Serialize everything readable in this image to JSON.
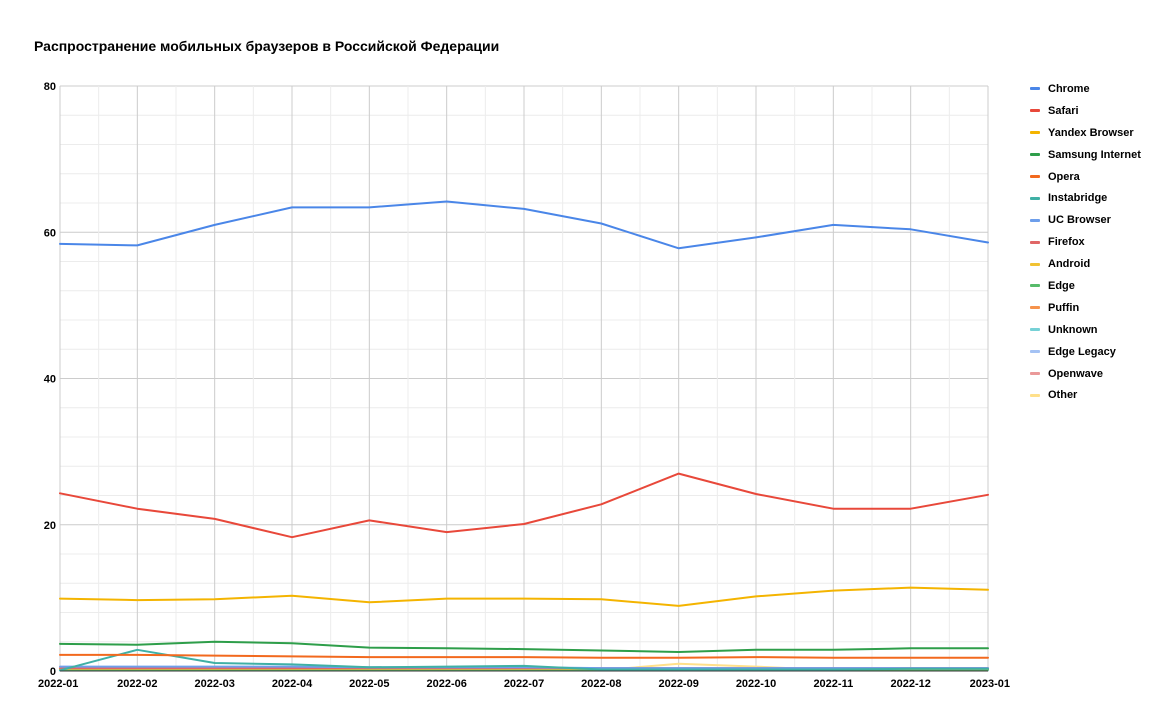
{
  "chart_data": {
    "type": "line",
    "title": "Распространение мобильных браузеров в Российской Федерации",
    "xlabel": "",
    "ylabel": "",
    "ylim": [
      0,
      80
    ],
    "yticks": [
      "0",
      "20",
      "40",
      "60",
      "80"
    ],
    "categories": [
      "2022-01",
      "2022-02",
      "2022-03",
      "2022-04",
      "2022-05",
      "2022-06",
      "2022-07",
      "2022-08",
      "2022-09",
      "2022-10",
      "2022-11",
      "2022-12",
      "2023-01"
    ],
    "grid": true,
    "legend_position": "right",
    "series": [
      {
        "name": "Chrome",
        "color": "#4a86e8",
        "values": [
          58.4,
          58.2,
          61.0,
          63.4,
          63.4,
          64.2,
          63.2,
          61.2,
          57.8,
          59.3,
          61.0,
          60.4,
          58.6
        ]
      },
      {
        "name": "Safari",
        "color": "#e8483a",
        "values": [
          24.3,
          22.2,
          20.8,
          18.3,
          20.6,
          19.0,
          20.1,
          22.8,
          27.0,
          24.2,
          22.2,
          22.2,
          24.1
        ]
      },
      {
        "name": "Yandex Browser",
        "color": "#f4b400",
        "values": [
          9.9,
          9.7,
          9.8,
          10.3,
          9.4,
          9.9,
          9.9,
          9.8,
          8.9,
          10.2,
          11.0,
          11.4,
          11.1
        ]
      },
      {
        "name": "Samsung Internet",
        "color": "#2e9e4a",
        "values": [
          3.7,
          3.6,
          4.0,
          3.8,
          3.2,
          3.1,
          3.0,
          2.8,
          2.6,
          2.9,
          2.9,
          3.1,
          3.1
        ]
      },
      {
        "name": "Opera",
        "color": "#f2691e",
        "values": [
          2.2,
          2.2,
          2.1,
          2.0,
          1.9,
          1.9,
          1.9,
          1.8,
          1.8,
          1.9,
          1.8,
          1.8,
          1.8
        ]
      },
      {
        "name": "Instabridge",
        "color": "#3fb0a5",
        "values": [
          0.1,
          2.9,
          1.1,
          0.9,
          0.5,
          0.6,
          0.7,
          0.2,
          0.2,
          0.2,
          0.2,
          0.3,
          0.3
        ]
      },
      {
        "name": "UC Browser",
        "color": "#6d9eeb",
        "values": [
          0.6,
          0.6,
          0.6,
          0.6,
          0.5,
          0.5,
          0.5,
          0.4,
          0.4,
          0.4,
          0.4,
          0.4,
          0.4
        ]
      },
      {
        "name": "Firefox",
        "color": "#e06666",
        "values": [
          0.4,
          0.4,
          0.4,
          0.4,
          0.4,
          0.4,
          0.4,
          0.4,
          0.4,
          0.4,
          0.4,
          0.4,
          0.4
        ]
      },
      {
        "name": "Android",
        "color": "#f1c232",
        "values": [
          0.3,
          0.3,
          0.3,
          0.3,
          0.3,
          0.3,
          0.3,
          0.3,
          0.3,
          0.3,
          0.3,
          0.3,
          0.3
        ]
      },
      {
        "name": "Edge",
        "color": "#57bb6a",
        "values": [
          0.2,
          0.2,
          0.2,
          0.2,
          0.2,
          0.2,
          0.2,
          0.2,
          0.2,
          0.2,
          0.2,
          0.2,
          0.2
        ]
      },
      {
        "name": "Puffin",
        "color": "#f6934c",
        "values": [
          0.2,
          0.2,
          0.2,
          0.2,
          0.2,
          0.2,
          0.2,
          0.2,
          0.2,
          0.2,
          0.2,
          0.2,
          0.2
        ]
      },
      {
        "name": "Unknown",
        "color": "#76d1d6",
        "values": [
          0.1,
          0.1,
          0.1,
          0.1,
          0.1,
          0.1,
          0.1,
          0.1,
          0.1,
          0.1,
          0.1,
          0.1,
          0.1
        ]
      },
      {
        "name": "Edge Legacy",
        "color": "#a4c2f4",
        "values": [
          0.1,
          0.1,
          0.1,
          0.1,
          0.1,
          0.1,
          0.1,
          0.1,
          0.1,
          0.1,
          0.1,
          0.1,
          0.1
        ]
      },
      {
        "name": "Openwave",
        "color": "#ea9999",
        "values": [
          0.1,
          0.1,
          0.1,
          0.1,
          0.1,
          0.1,
          0.1,
          0.1,
          0.1,
          0.1,
          0.1,
          0.1,
          0.1
        ]
      },
      {
        "name": "Other",
        "color": "#ffe08a",
        "values": [
          0.1,
          0.1,
          0.1,
          0.1,
          0.1,
          0.1,
          0.1,
          0.1,
          1.0,
          0.6,
          0.1,
          0.1,
          0.1
        ]
      }
    ]
  }
}
